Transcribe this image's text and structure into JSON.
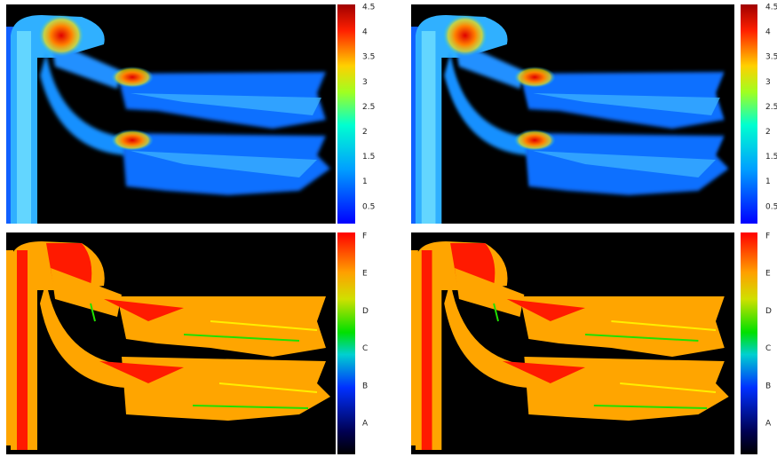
{
  "panels": [
    {
      "colorbar_ticks": [
        4.5,
        4,
        3.5,
        3,
        2.5,
        2,
        1.5,
        1,
        0.5
      ]
    },
    {
      "colorbar_ticks": [
        4.5,
        4,
        3.5,
        3,
        2.5,
        2,
        1.5,
        1,
        0.5
      ]
    },
    {
      "colorbar_ticks": [
        "F",
        "E",
        "D",
        "C",
        "B",
        "A"
      ]
    },
    {
      "colorbar_ticks": [
        "F",
        "E",
        "D",
        "C",
        "B",
        "A"
      ]
    }
  ]
}
